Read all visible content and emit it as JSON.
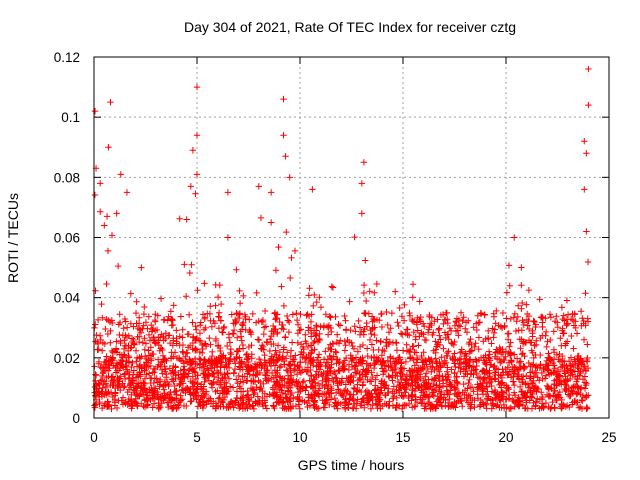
{
  "chart_data": {
    "type": "scatter",
    "title": "Day 304 of 2021, Rate Of TEC Index for receiver cztg",
    "xlabel": "GPS time / hours",
    "ylabel": "ROTI / TECUs",
    "xlim": [
      0,
      25
    ],
    "ylim": [
      0,
      0.12
    ],
    "xticks": [
      0,
      5,
      10,
      15,
      20,
      25
    ],
    "xtick_labels": [
      "0",
      "5",
      "10",
      "15",
      "20",
      "25"
    ],
    "yticks": [
      0,
      0.02,
      0.04,
      0.06,
      0.08,
      0.1,
      0.12
    ],
    "ytick_labels": [
      "0",
      "0.02",
      "0.04",
      "0.06",
      "0.08",
      "0.1",
      "0.12"
    ],
    "grid": true,
    "marker": "+",
    "color": "#ff0000",
    "data_x_range": [
      0,
      24
    ],
    "baseline_roti_range": [
      0.003,
      0.02
    ],
    "series": [
      {
        "name": "ROTI",
        "highlights": [
          {
            "x": 0.05,
            "y": 0.102
          },
          {
            "x": 0.1,
            "y": 0.083
          },
          {
            "x": 0.3,
            "y": 0.078
          },
          {
            "x": 0.5,
            "y": 0.064
          },
          {
            "x": 0.7,
            "y": 0.09
          },
          {
            "x": 0.8,
            "y": 0.105
          },
          {
            "x": 1.1,
            "y": 0.068
          },
          {
            "x": 1.3,
            "y": 0.081
          },
          {
            "x": 1.6,
            "y": 0.075
          },
          {
            "x": 2.3,
            "y": 0.05
          },
          {
            "x": 4.5,
            "y": 0.066
          },
          {
            "x": 4.7,
            "y": 0.077
          },
          {
            "x": 4.8,
            "y": 0.089
          },
          {
            "x": 5.0,
            "y": 0.11
          },
          {
            "x": 5.0,
            "y": 0.094
          },
          {
            "x": 5.0,
            "y": 0.081
          },
          {
            "x": 6.5,
            "y": 0.075
          },
          {
            "x": 6.5,
            "y": 0.06
          },
          {
            "x": 8.0,
            "y": 0.077
          },
          {
            "x": 8.6,
            "y": 0.075
          },
          {
            "x": 8.6,
            "y": 0.065
          },
          {
            "x": 9.2,
            "y": 0.106
          },
          {
            "x": 9.2,
            "y": 0.094
          },
          {
            "x": 9.3,
            "y": 0.087
          },
          {
            "x": 9.5,
            "y": 0.08
          },
          {
            "x": 10.6,
            "y": 0.076
          },
          {
            "x": 13.1,
            "y": 0.085
          },
          {
            "x": 13.0,
            "y": 0.078
          },
          {
            "x": 13.0,
            "y": 0.068
          },
          {
            "x": 20.4,
            "y": 0.06
          },
          {
            "x": 23.8,
            "y": 0.092
          },
          {
            "x": 23.9,
            "y": 0.088
          },
          {
            "x": 23.8,
            "y": 0.076
          },
          {
            "x": 23.9,
            "y": 0.062
          },
          {
            "x": 24.0,
            "y": 0.116
          },
          {
            "x": 24.0,
            "y": 0.104
          }
        ],
        "activity_bands": [
          {
            "from": 0.0,
            "to": 0.4,
            "max": 0.085
          },
          {
            "from": 0.4,
            "to": 1.0,
            "max": 0.09
          },
          {
            "from": 1.0,
            "to": 1.8,
            "max": 0.07
          },
          {
            "from": 1.8,
            "to": 4.0,
            "max": 0.04
          },
          {
            "from": 4.0,
            "to": 5.3,
            "max": 0.075
          },
          {
            "from": 5.3,
            "to": 7.5,
            "max": 0.05
          },
          {
            "from": 7.5,
            "to": 10.0,
            "max": 0.075
          },
          {
            "from": 10.0,
            "to": 12.5,
            "max": 0.045
          },
          {
            "from": 12.5,
            "to": 13.3,
            "max": 0.07
          },
          {
            "from": 13.3,
            "to": 16.0,
            "max": 0.045
          },
          {
            "from": 16.0,
            "to": 19.5,
            "max": 0.035
          },
          {
            "from": 19.5,
            "to": 21.0,
            "max": 0.055
          },
          {
            "from": 21.0,
            "to": 23.5,
            "max": 0.045
          },
          {
            "from": 23.5,
            "to": 24.0,
            "max": 0.065
          }
        ]
      }
    ]
  }
}
